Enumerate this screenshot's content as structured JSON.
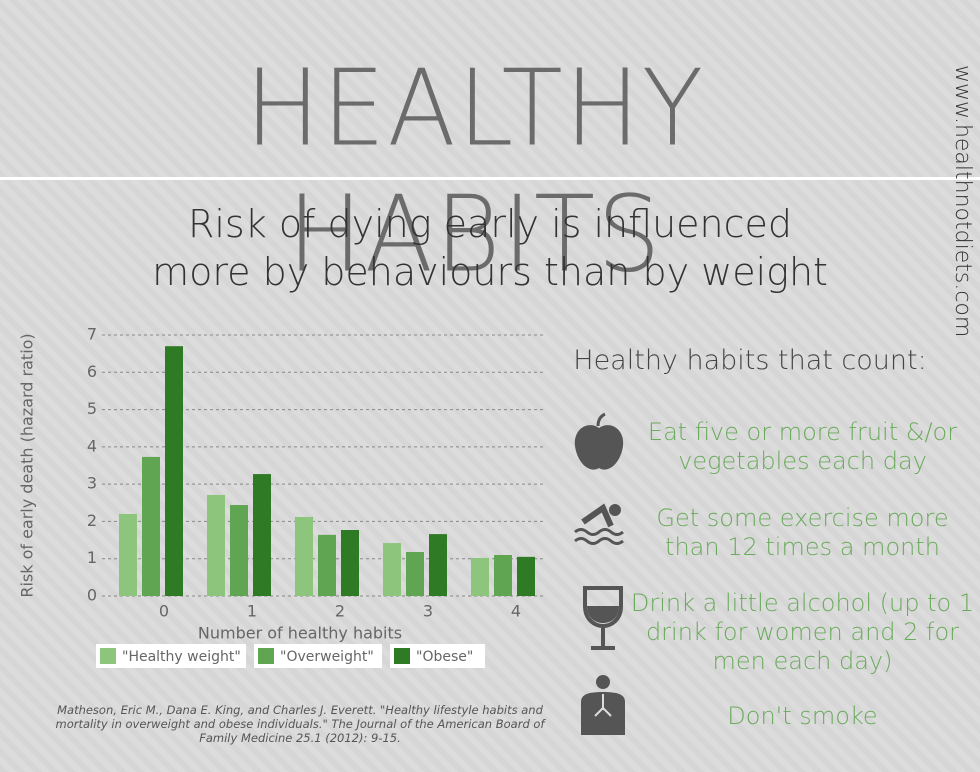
{
  "title": "HEALTHY HABITS",
  "website": "www.healthnotdiets.com",
  "subtitle": [
    "Risk of dying early is influenced",
    "more by behaviours than by weight"
  ],
  "chart_data": {
    "type": "bar",
    "y_label": "Risk of early death (hazard ratio)",
    "x_label": "Number of healthy habits",
    "categories": [
      "0",
      "1",
      "2",
      "3",
      "4"
    ],
    "series": [
      {
        "name": "\"Healthy weight\"",
        "color": "#8dc57d",
        "values": [
          2.2,
          2.71,
          2.12,
          1.42,
          1.02
        ]
      },
      {
        "name": "\"Overweight\"",
        "color": "#5fa552",
        "values": [
          3.73,
          2.44,
          1.64,
          1.18,
          1.1
        ]
      },
      {
        "name": "\"Obese\"",
        "color": "#2f7a24",
        "values": [
          6.7,
          3.27,
          1.77,
          1.66,
          1.05
        ]
      }
    ],
    "ylim": [
      0,
      7
    ],
    "yticks": [
      0,
      1,
      2,
      3,
      4,
      5,
      6,
      7
    ],
    "grid": true
  },
  "citation": "Matheson, Eric M., Dana E. King, and Charles J. Everett. \"Healthy lifestyle habits and mortality in overweight and obese individuals.\" The Journal of the American Board of Family Medicine 25.1 (2012): 9-15.",
  "habits_heading": "Healthy habits that count:",
  "habits": [
    "Eat five or more fruit &/or vegetables each day",
    "Get some exercise more than 12 times a month",
    "Drink a little alcohol (up to 1 drink for women and 2 for men each day)",
    "Don't smoke"
  ]
}
